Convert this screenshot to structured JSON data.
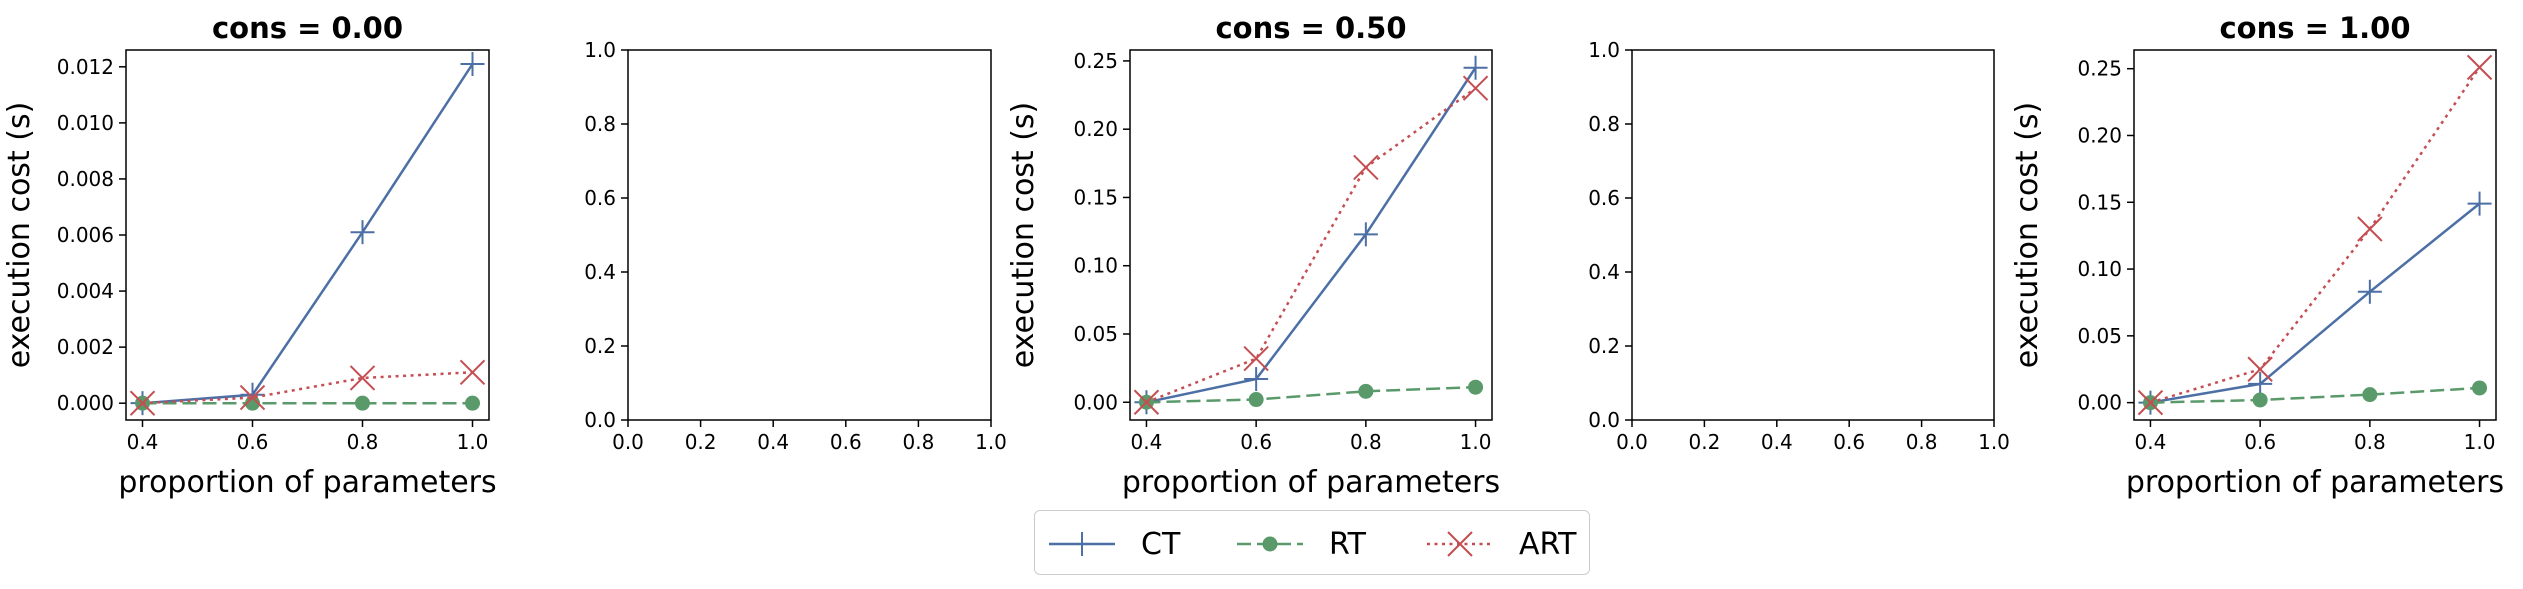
{
  "colors": {
    "CT": "#4c6fa5",
    "RT": "#5a9a6a",
    "ART": "#c44e52"
  },
  "legend": {
    "items": [
      {
        "name": "CT",
        "marker": "plus",
        "line": "solid"
      },
      {
        "name": "RT",
        "marker": "circle",
        "line": "dashed"
      },
      {
        "name": "ART",
        "marker": "x",
        "line": "dotted"
      }
    ]
  },
  "chart_data": [
    {
      "type": "line",
      "title": "cons = 0.00",
      "xlabel": "proportion of parameters",
      "ylabel": "execution cost (s)",
      "xlim": [
        0.37,
        1.03
      ],
      "ylim": [
        -0.0006,
        0.0126
      ],
      "xticks": [
        "0.4",
        "0.6",
        "0.8",
        "1.0"
      ],
      "xtick_values": [
        0.4,
        0.6,
        0.8,
        1.0
      ],
      "yticks": [
        "0.000",
        "0.002",
        "0.004",
        "0.006",
        "0.008",
        "0.010",
        "0.012"
      ],
      "ytick_values": [
        0,
        0.002,
        0.004,
        0.006,
        0.008,
        0.01,
        0.012
      ],
      "x": [
        0.4,
        0.6,
        0.8,
        1.0
      ],
      "series": [
        {
          "name": "CT",
          "values": [
            0.0,
            0.0003,
            0.0061,
            0.0121
          ]
        },
        {
          "name": "RT",
          "values": [
            0.0,
            0.0,
            0.0,
            0.0
          ]
        },
        {
          "name": "ART",
          "values": [
            0.0,
            0.0002,
            0.0009,
            0.0011
          ]
        }
      ]
    },
    {
      "type": "line",
      "title": "",
      "xlabel": "",
      "ylabel": "",
      "xlim": [
        0,
        1
      ],
      "ylim": [
        0,
        1
      ],
      "xticks": [
        "0.0",
        "0.2",
        "0.4",
        "0.6",
        "0.8",
        "1.0"
      ],
      "xtick_values": [
        0,
        0.2,
        0.4,
        0.6,
        0.8,
        1.0
      ],
      "yticks": [
        "0.0",
        "0.2",
        "0.4",
        "0.6",
        "0.8",
        "1.0"
      ],
      "ytick_values": [
        0,
        0.2,
        0.4,
        0.6,
        0.8,
        1.0
      ],
      "x": [],
      "series": []
    },
    {
      "type": "line",
      "title": "cons = 0.50",
      "xlabel": "proportion of parameters",
      "ylabel": "execution cost (s)",
      "xlim": [
        0.37,
        1.03
      ],
      "ylim": [
        -0.013,
        0.258
      ],
      "xticks": [
        "0.4",
        "0.6",
        "0.8",
        "1.0"
      ],
      "xtick_values": [
        0.4,
        0.6,
        0.8,
        1.0
      ],
      "yticks": [
        "0.00",
        "0.05",
        "0.10",
        "0.15",
        "0.20",
        "0.25"
      ],
      "ytick_values": [
        0,
        0.05,
        0.1,
        0.15,
        0.2,
        0.25
      ],
      "x": [
        0.4,
        0.6,
        0.8,
        1.0
      ],
      "series": [
        {
          "name": "CT",
          "values": [
            0.0,
            0.017,
            0.123,
            0.245
          ]
        },
        {
          "name": "RT",
          "values": [
            0.0,
            0.002,
            0.008,
            0.011
          ]
        },
        {
          "name": "ART",
          "values": [
            0.0,
            0.032,
            0.172,
            0.23
          ]
        }
      ]
    },
    {
      "type": "line",
      "title": "",
      "xlabel": "",
      "ylabel": "",
      "xlim": [
        0,
        1
      ],
      "ylim": [
        0,
        1
      ],
      "xticks": [
        "0.0",
        "0.2",
        "0.4",
        "0.6",
        "0.8",
        "1.0"
      ],
      "xtick_values": [
        0,
        0.2,
        0.4,
        0.6,
        0.8,
        1.0
      ],
      "yticks": [
        "0.0",
        "0.2",
        "0.4",
        "0.6",
        "0.8",
        "1.0"
      ],
      "ytick_values": [
        0,
        0.2,
        0.4,
        0.6,
        0.8,
        1.0
      ],
      "x": [],
      "series": []
    },
    {
      "type": "line",
      "title": "cons = 1.00",
      "xlabel": "proportion of parameters",
      "ylabel": "execution cost (s)",
      "xlim": [
        0.37,
        1.03
      ],
      "ylim": [
        -0.013,
        0.264
      ],
      "xticks": [
        "0.4",
        "0.6",
        "0.8",
        "1.0"
      ],
      "xtick_values": [
        0.4,
        0.6,
        0.8,
        1.0
      ],
      "yticks": [
        "0.00",
        "0.05",
        "0.10",
        "0.15",
        "0.20",
        "0.25"
      ],
      "ytick_values": [
        0,
        0.05,
        0.1,
        0.15,
        0.2,
        0.25
      ],
      "x": [
        0.4,
        0.6,
        0.8,
        1.0
      ],
      "series": [
        {
          "name": "CT",
          "values": [
            0.0,
            0.014,
            0.083,
            0.149
          ]
        },
        {
          "name": "RT",
          "values": [
            0.0,
            0.002,
            0.006,
            0.011
          ]
        },
        {
          "name": "ART",
          "values": [
            0.0,
            0.025,
            0.13,
            0.251
          ]
        }
      ]
    }
  ]
}
